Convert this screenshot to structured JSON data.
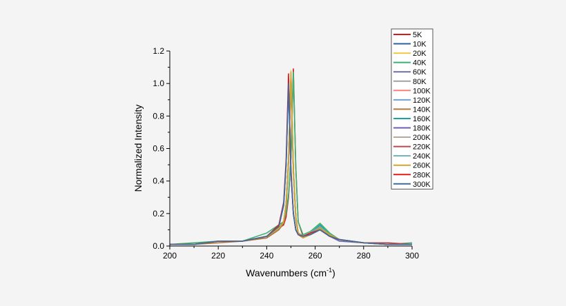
{
  "chart_data": {
    "type": "line",
    "title": "",
    "xlabel": "Wavenumbers (cm",
    "xlabel_sup": "-1",
    "xlabel_end": ")",
    "ylabel": "Normalized Intensity",
    "xlim": [
      200,
      300
    ],
    "ylim": [
      0,
      1.2
    ],
    "xticks": [
      200,
      220,
      240,
      260,
      280,
      300
    ],
    "yticks": [
      0.0,
      0.2,
      0.4,
      0.6,
      0.8,
      1.0,
      1.2
    ],
    "xtick_labels": [
      "200",
      "220",
      "240",
      "260",
      "280",
      "300"
    ],
    "ytick_labels": [
      "0.0",
      "0.2",
      "0.4",
      "0.6",
      "0.8",
      "1.0",
      "1.2"
    ],
    "grid": false,
    "legend_placement": "top-right",
    "x": [
      200,
      210,
      220,
      230,
      240,
      245,
      247,
      248,
      249,
      250,
      251,
      252,
      253,
      255,
      258,
      262,
      266,
      270,
      280,
      290,
      300
    ],
    "series": [
      {
        "name": "5K",
        "color": "#d7191c",
        "values": [
          0.01,
          0.01,
          0.03,
          0.03,
          0.06,
          0.11,
          0.13,
          0.18,
          0.3,
          0.55,
          1.09,
          0.49,
          0.15,
          0.06,
          0.08,
          0.1,
          0.06,
          0.04,
          0.02,
          0.01,
          0.01
        ]
      },
      {
        "name": "10K",
        "color": "#2e5fa0",
        "values": [
          0.01,
          0.01,
          0.03,
          0.03,
          0.06,
          0.12,
          0.25,
          0.5,
          1.0,
          0.45,
          0.2,
          0.1,
          0.07,
          0.06,
          0.08,
          0.1,
          0.06,
          0.04,
          0.02,
          0.01,
          0.01
        ]
      },
      {
        "name": "20K",
        "color": "#f5c842",
        "values": [
          0.01,
          0.01,
          0.03,
          0.03,
          0.06,
          0.11,
          0.15,
          0.25,
          0.54,
          1.08,
          0.49,
          0.18,
          0.08,
          0.06,
          0.07,
          0.12,
          0.07,
          0.04,
          0.02,
          0.01,
          0.01
        ]
      },
      {
        "name": "40K",
        "color": "#3bb273",
        "values": [
          0.01,
          0.02,
          0.03,
          0.03,
          0.08,
          0.13,
          0.15,
          0.2,
          0.32,
          0.54,
          1.07,
          0.48,
          0.15,
          0.07,
          0.09,
          0.14,
          0.08,
          0.04,
          0.02,
          0.01,
          0.02
        ]
      },
      {
        "name": "60K",
        "color": "#6b6ea8",
        "values": [
          0.01,
          0.01,
          0.03,
          0.03,
          0.05,
          0.1,
          0.14,
          0.25,
          0.52,
          1.03,
          0.46,
          0.18,
          0.08,
          0.06,
          0.07,
          0.1,
          0.06,
          0.03,
          0.02,
          0.01,
          0.01
        ]
      },
      {
        "name": "80K",
        "color": "#a0a0a0",
        "values": [
          0.01,
          0.01,
          0.03,
          0.03,
          0.06,
          0.11,
          0.15,
          0.26,
          0.53,
          1.05,
          0.47,
          0.18,
          0.08,
          0.06,
          0.08,
          0.12,
          0.07,
          0.04,
          0.02,
          0.01,
          0.01
        ]
      },
      {
        "name": "100K",
        "color": "#f58080",
        "values": [
          0.01,
          0.01,
          0.03,
          0.03,
          0.06,
          0.11,
          0.15,
          0.26,
          0.53,
          1.06,
          0.48,
          0.18,
          0.08,
          0.06,
          0.08,
          0.13,
          0.07,
          0.04,
          0.02,
          0.02,
          0.01
        ]
      },
      {
        "name": "120K",
        "color": "#6fa0d0",
        "values": [
          0.01,
          0.01,
          0.03,
          0.03,
          0.06,
          0.11,
          0.15,
          0.25,
          0.52,
          1.04,
          0.47,
          0.18,
          0.08,
          0.06,
          0.08,
          0.12,
          0.07,
          0.04,
          0.02,
          0.01,
          0.01
        ]
      },
      {
        "name": "140K",
        "color": "#b5773a",
        "values": [
          0.01,
          0.01,
          0.02,
          0.03,
          0.05,
          0.1,
          0.14,
          0.24,
          0.51,
          1.02,
          0.46,
          0.17,
          0.07,
          0.05,
          0.07,
          0.11,
          0.06,
          0.04,
          0.02,
          0.01,
          0.01
        ]
      },
      {
        "name": "160K",
        "color": "#1aa3a3",
        "values": [
          0.01,
          0.01,
          0.03,
          0.03,
          0.06,
          0.11,
          0.15,
          0.26,
          0.53,
          1.05,
          0.47,
          0.18,
          0.08,
          0.06,
          0.08,
          0.13,
          0.07,
          0.04,
          0.02,
          0.01,
          0.01
        ]
      },
      {
        "name": "180K",
        "color": "#6a5fb5",
        "values": [
          0.01,
          0.01,
          0.03,
          0.03,
          0.06,
          0.12,
          0.25,
          0.5,
          1.0,
          0.45,
          0.2,
          0.1,
          0.07,
          0.06,
          0.07,
          0.1,
          0.06,
          0.04,
          0.02,
          0.01,
          0.01
        ]
      },
      {
        "name": "200K",
        "color": "#b8a89a",
        "values": [
          0.01,
          0.01,
          0.03,
          0.03,
          0.06,
          0.11,
          0.15,
          0.25,
          0.52,
          1.03,
          0.46,
          0.18,
          0.08,
          0.06,
          0.08,
          0.11,
          0.07,
          0.04,
          0.02,
          0.01,
          0.01
        ]
      },
      {
        "name": "220K",
        "color": "#b84a4a",
        "values": [
          0.01,
          0.01,
          0.03,
          0.03,
          0.06,
          0.11,
          0.15,
          0.25,
          0.52,
          1.04,
          0.47,
          0.18,
          0.08,
          0.06,
          0.08,
          0.12,
          0.07,
          0.04,
          0.02,
          0.02,
          0.01
        ]
      },
      {
        "name": "240K",
        "color": "#6fb0b0",
        "values": [
          0.01,
          0.01,
          0.03,
          0.03,
          0.06,
          0.11,
          0.15,
          0.26,
          0.53,
          1.05,
          0.47,
          0.18,
          0.08,
          0.06,
          0.08,
          0.12,
          0.07,
          0.04,
          0.02,
          0.01,
          0.01
        ]
      },
      {
        "name": "260K",
        "color": "#d4a52a",
        "values": [
          0.01,
          0.01,
          0.03,
          0.03,
          0.06,
          0.11,
          0.15,
          0.26,
          0.54,
          1.07,
          0.48,
          0.18,
          0.08,
          0.05,
          0.07,
          0.11,
          0.07,
          0.04,
          0.02,
          0.01,
          0.01
        ]
      },
      {
        "name": "280K",
        "color": "#e01a1a",
        "values": [
          0.01,
          0.01,
          0.03,
          0.03,
          0.06,
          0.13,
          0.27,
          0.53,
          1.06,
          0.48,
          0.2,
          0.1,
          0.07,
          0.06,
          0.08,
          0.1,
          0.06,
          0.04,
          0.02,
          0.01,
          0.01
        ]
      },
      {
        "name": "300K",
        "color": "#3f6a9a",
        "values": [
          0.01,
          0.01,
          0.03,
          0.03,
          0.06,
          0.12,
          0.26,
          0.5,
          1.0,
          0.45,
          0.2,
          0.1,
          0.07,
          0.06,
          0.07,
          0.1,
          0.06,
          0.04,
          0.02,
          0.01,
          0.01
        ]
      }
    ]
  }
}
